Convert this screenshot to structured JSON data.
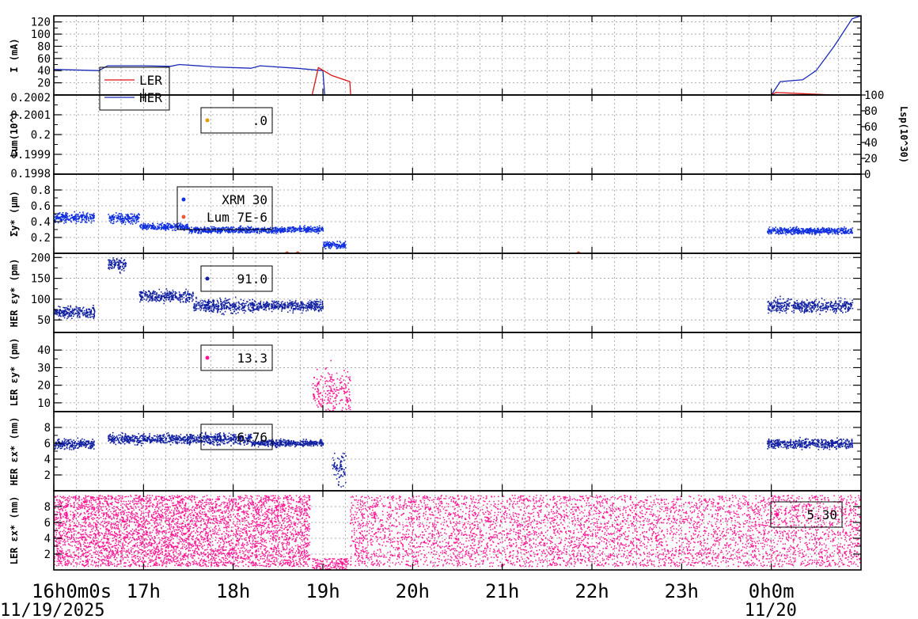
{
  "chart_data": {
    "type": "scatter",
    "x_unit": "hours since 11/19/2025 16:00",
    "x_range": [
      16,
      25
    ],
    "x_ticks": [
      {
        "h": 16,
        "label": "16h0m0s"
      },
      {
        "h": 17,
        "label": "17h"
      },
      {
        "h": 18,
        "label": "18h"
      },
      {
        "h": 19,
        "label": "19h"
      },
      {
        "h": 20,
        "label": "20h"
      },
      {
        "h": 21,
        "label": "21h"
      },
      {
        "h": 22,
        "label": "22h"
      },
      {
        "h": 23,
        "label": "23h"
      },
      {
        "h": 24,
        "label": "0h0m"
      }
    ],
    "dates": [
      {
        "h": 16,
        "label": "11/19/2025"
      },
      {
        "h": 24,
        "label": "11/20"
      }
    ],
    "panels": [
      {
        "id": "current",
        "ylabel": "I (mA)",
        "ylim": [
          0,
          130
        ],
        "yticks": [
          20,
          40,
          60,
          80,
          100,
          120
        ],
        "legend": [
          {
            "name": "LER",
            "color": "#dd1111"
          },
          {
            "name": "HER",
            "color": "#1a2ab8"
          }
        ],
        "series": [
          {
            "name": "HER",
            "color": "#1a2ab8",
            "style": "line",
            "points": [
              [
                16.0,
                42
              ],
              [
                16.5,
                40
              ],
              [
                16.6,
                48
              ],
              [
                17.0,
                48
              ],
              [
                17.3,
                47
              ],
              [
                17.4,
                50
              ],
              [
                17.8,
                46
              ],
              [
                18.2,
                44
              ],
              [
                18.3,
                48
              ],
              [
                18.7,
                44
              ],
              [
                19.0,
                40
              ],
              [
                19.02,
                0
              ],
              [
                24.0,
                0
              ],
              [
                24.1,
                22
              ],
              [
                24.35,
                25
              ],
              [
                24.5,
                40
              ],
              [
                24.7,
                80
              ],
              [
                24.9,
                125
              ],
              [
                25.0,
                130
              ]
            ]
          },
          {
            "name": "LER",
            "color": "#dd1111",
            "style": "line",
            "points": [
              [
                16.0,
                0
              ],
              [
                18.88,
                0
              ],
              [
                18.95,
                45
              ],
              [
                19.1,
                32
              ],
              [
                19.3,
                22
              ],
              [
                19.31,
                0
              ],
              [
                24.0,
                0
              ],
              [
                24.05,
                4
              ],
              [
                24.7,
                0
              ],
              [
                25.0,
                0
              ]
            ]
          }
        ]
      },
      {
        "id": "lum",
        "ylabel": "Lum(10^)",
        "ylim": [
          0.1998,
          0.2002
        ],
        "yticks": [
          0.1998,
          0.1999,
          0.2,
          0.2001,
          0.2002
        ],
        "ytick_labels": [
          "0.1998",
          "0.1999",
          "0.2",
          "0.2001",
          "0.2002"
        ],
        "right_axis": {
          "label": "Lsp(10^30)",
          "ylim": [
            0,
            100
          ],
          "yticks": [
            0,
            20,
            40,
            60,
            80,
            100
          ]
        },
        "legend": [
          {
            "name": ".0",
            "color": "#e0a000"
          }
        ],
        "series": []
      },
      {
        "id": "sigma_y",
        "ylabel": "Σy* (μm)",
        "ylim": [
          0,
          1.0
        ],
        "yticks": [
          0.2,
          0.4,
          0.6,
          0.8
        ],
        "legend": [
          {
            "name": "XRM   30",
            "color": "#1030e0"
          },
          {
            "name": "Lum 7E-6",
            "color": "#ee5533"
          }
        ],
        "series": [
          {
            "name": "XRM",
            "color": "#1030e0",
            "style": "band",
            "segments": [
              [
                16.0,
                16.45,
                0.46,
                0.03
              ],
              [
                16.6,
                16.95,
                0.45,
                0.03
              ],
              [
                16.95,
                17.5,
                0.34,
                0.02
              ],
              [
                17.5,
                18.6,
                0.3,
                0.02
              ],
              [
                18.6,
                19.0,
                0.31,
                0.02
              ],
              [
                19.0,
                19.25,
                0.11,
                0.02
              ],
              [
                23.95,
                24.9,
                0.29,
                0.02
              ]
            ]
          },
          {
            "name": "Lum",
            "color": "#ee5533",
            "style": "points",
            "points": [
              [
                18.6,
                0.0
              ],
              [
                18.72,
                0.0
              ],
              [
                21.85,
                0.0
              ]
            ]
          }
        ]
      },
      {
        "id": "her_eps_y",
        "ylabel": "HER εy* (pm)",
        "ylim": [
          20,
          210
        ],
        "yticks": [
          50,
          100,
          150,
          200
        ],
        "legend": [
          {
            "name": "91.0",
            "color": "#1020a0"
          }
        ],
        "series": [
          {
            "name": "HER",
            "color": "#1020a0",
            "style": "band",
            "segments": [
              [
                16.0,
                16.45,
                70,
                7
              ],
              [
                16.6,
                16.8,
                185,
                8
              ],
              [
                16.95,
                17.55,
                108,
                7
              ],
              [
                17.55,
                18.2,
                85,
                8
              ],
              [
                18.2,
                19.0,
                85,
                6
              ],
              [
                23.95,
                24.9,
                85,
                8
              ]
            ]
          }
        ]
      },
      {
        "id": "ler_eps_y",
        "ylabel": "LER εy* (pm)",
        "ylim": [
          5,
          50
        ],
        "yticks": [
          10,
          20,
          30,
          40
        ],
        "legend": [
          {
            "name": "13.3",
            "color": "#ff1493"
          }
        ],
        "series": [
          {
            "name": "LER",
            "color": "#ff1493",
            "style": "band",
            "segments": [
              [
                18.88,
                19.3,
                17,
                6
              ]
            ]
          }
        ]
      },
      {
        "id": "her_eps_x",
        "ylabel": "HER εx* (nm)",
        "ylim": [
          0,
          10
        ],
        "yticks": [
          2,
          4,
          6,
          8
        ],
        "legend": [
          {
            "name": "6.76",
            "color": "#1020a0"
          }
        ],
        "series": [
          {
            "name": "HER",
            "color": "#1020a0",
            "style": "band",
            "segments": [
              [
                16.0,
                16.45,
                6.0,
                0.3
              ],
              [
                16.6,
                17.5,
                6.6,
                0.3
              ],
              [
                17.5,
                18.2,
                6.6,
                0.35
              ],
              [
                18.2,
                19.0,
                6.1,
                0.2
              ],
              [
                19.1,
                19.25,
                3.0,
                1.0
              ],
              [
                23.95,
                24.9,
                6.0,
                0.3
              ]
            ]
          }
        ]
      },
      {
        "id": "ler_eps_x",
        "ylabel": "LER εx* (nm)",
        "ylim": [
          0,
          10
        ],
        "yticks": [
          2,
          4,
          6,
          8
        ],
        "legend": [
          {
            "name": "5.30",
            "color": "#ff1493"
          }
        ],
        "series": [
          {
            "name": "LER",
            "color": "#ff1493",
            "style": "noise",
            "segments": [
              [
                16.0,
                18.85,
                0.5,
                9.5
              ],
              [
                18.88,
                19.28,
                1.5,
                0.1
              ],
              [
                19.3,
                25.0,
                0.5,
                9.5
              ]
            ]
          }
        ]
      }
    ]
  }
}
